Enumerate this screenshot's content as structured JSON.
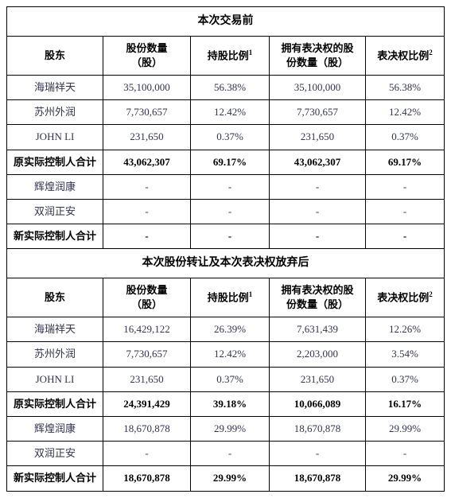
{
  "section1": {
    "title": "本次交易前",
    "headers": {
      "shareholder": "股东",
      "shares": "股份数量\n（股）",
      "holdPct": "持股比例",
      "holdPctSup": "1",
      "votingShares": "拥有表决权的股\n份数量（股）",
      "votingPct": "表决权比例",
      "votingPctSup": "2"
    },
    "rows": [
      {
        "name": "海瑞祥天",
        "shares": "35,100,000",
        "holdPct": "56.38%",
        "votingShares": "35,100,000",
        "votingPct": "56.38%"
      },
      {
        "name": "苏州外润",
        "shares": "7,730,657",
        "holdPct": "12.42%",
        "votingShares": "7,730,657",
        "votingPct": "12.42%"
      },
      {
        "name": "JOHN LI",
        "shares": "231,650",
        "holdPct": "0.37%",
        "votingShares": "231,650",
        "votingPct": "0.37%"
      }
    ],
    "subtotal1": {
      "name": "原实际控制人合计",
      "shares": "43,062,307",
      "holdPct": "69.17%",
      "votingShares": "43,062,307",
      "votingPct": "69.17%"
    },
    "rows2": [
      {
        "name": "辉煌润康",
        "shares": "-",
        "holdPct": "-",
        "votingShares": "-",
        "votingPct": "-"
      },
      {
        "name": "双润正安",
        "shares": "-",
        "holdPct": "-",
        "votingShares": "-",
        "votingPct": "-"
      }
    ],
    "subtotal2": {
      "name": "新实际控制人合计",
      "shares": "-",
      "holdPct": "-",
      "votingShares": "-",
      "votingPct": "-"
    }
  },
  "section2": {
    "title": "本次股份转让及本次表决权放弃后",
    "headers": {
      "shareholder": "股东",
      "shares": "股份数量\n（股）",
      "holdPct": "持股比例",
      "holdPctSup": "1",
      "votingShares": "拥有表决权的股\n份数量（股）",
      "votingPct": "表决权比例",
      "votingPctSup": "2"
    },
    "rows": [
      {
        "name": "海瑞祥天",
        "shares": "16,429,122",
        "holdPct": "26.39%",
        "votingShares": "7,631,439",
        "votingPct": "12.26%"
      },
      {
        "name": "苏州外润",
        "shares": "7,730,657",
        "holdPct": "12.42%",
        "votingShares": "2,203,000",
        "votingPct": "3.54%"
      },
      {
        "name": "JOHN LI",
        "shares": "231,650",
        "holdPct": "0.37%",
        "votingShares": "231,650",
        "votingPct": "0.37%"
      }
    ],
    "subtotal1": {
      "name": "原实际控制人合计",
      "shares": "24,391,429",
      "holdPct": "39.18%",
      "votingShares": "10,066,089",
      "votingPct": "16.17%"
    },
    "rows2": [
      {
        "name": "辉煌润康",
        "shares": "18,670,878",
        "holdPct": "29.99%",
        "votingShares": "18,670,878",
        "votingPct": "29.99%"
      },
      {
        "name": "双润正安",
        "shares": "-",
        "holdPct": "-",
        "votingShares": "-",
        "votingPct": "-"
      }
    ],
    "subtotal2": {
      "name": "新实际控制人合计",
      "shares": "18,670,878",
      "holdPct": "29.99%",
      "votingShares": "18,670,878",
      "votingPct": "29.99%"
    }
  }
}
